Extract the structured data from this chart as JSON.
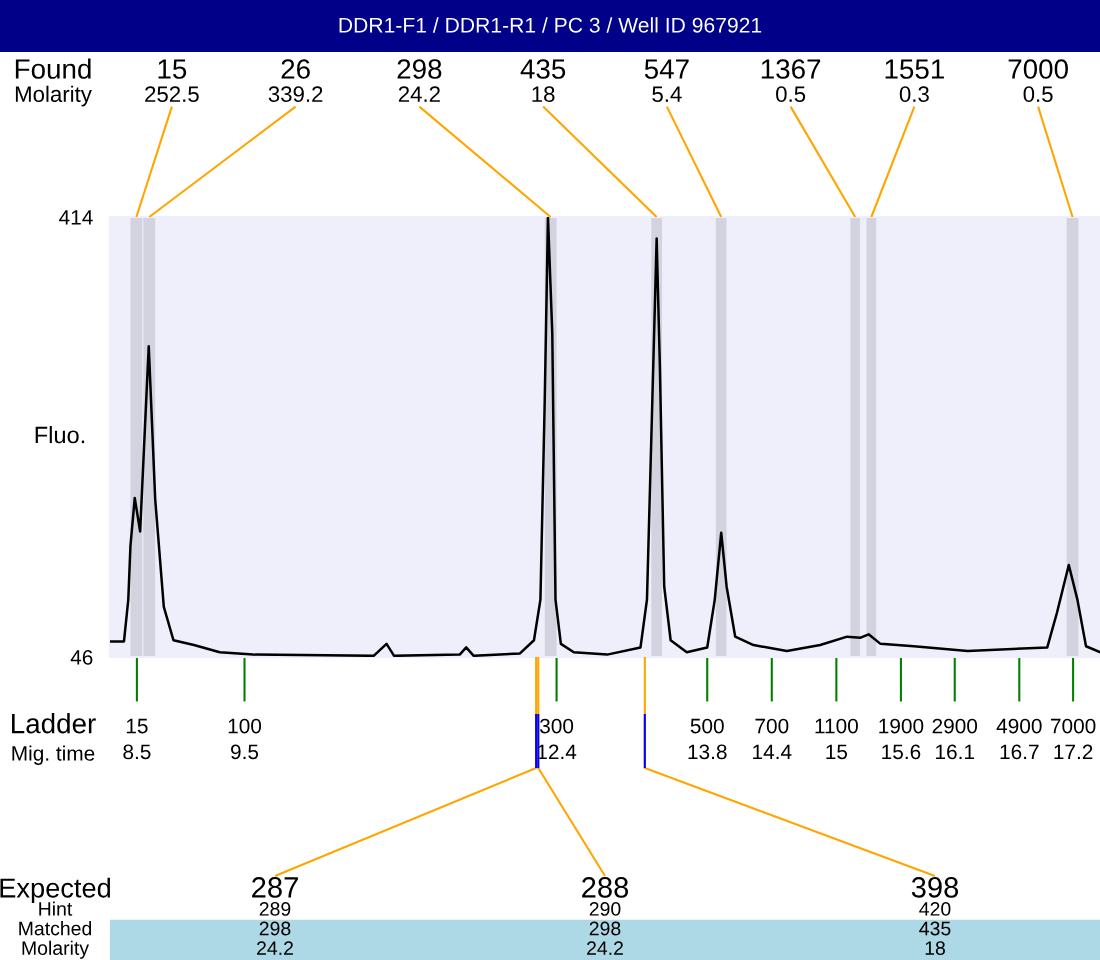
{
  "chart_data": {
    "type": "line",
    "title": "DDR1-F1 / DDR1-R1 / PC 3 / Well ID 967921",
    "xlabel": "Ladder\nMig. time",
    "ylabel": "Fluo.",
    "x": [
      8.25,
      8.38,
      8.42,
      8.44,
      8.48,
      8.53,
      8.61,
      8.67,
      8.75,
      8.84,
      9.03,
      9.27,
      9.58,
      10.7,
      10.82,
      10.89,
      11.5,
      11.56,
      11.63,
      12.06,
      12.19,
      12.25,
      12.29,
      12.32,
      12.36,
      12.39,
      12.44,
      12.56,
      12.87,
      13.18,
      13.24,
      13.29,
      13.33,
      13.36,
      13.4,
      13.46,
      13.61,
      13.8,
      13.87,
      13.93,
      13.98,
      14.06,
      14.23,
      14.54,
      14.85,
      15.1,
      15.22,
      15.3,
      15.41,
      15.72,
      16.22,
      16.96,
      17.05,
      17.16,
      17.24,
      17.32,
      17.45
    ],
    "values": [
      59,
      59,
      94,
      139,
      179,
      151,
      306,
      178,
      88,
      60,
      56,
      50,
      48,
      47,
      57,
      47,
      48,
      54,
      47,
      49,
      60,
      94,
      261,
      414,
      317,
      94,
      57,
      50,
      48,
      54,
      94,
      261,
      396,
      289,
      105,
      60,
      50,
      54,
      94,
      150,
      105,
      63,
      56,
      51,
      56,
      63,
      62,
      65,
      57,
      55,
      51,
      54,
      83,
      123,
      94,
      55,
      50
    ],
    "color": "#000000",
    "line_style": "solid",
    "grid": false,
    "xlim": [
      8.25,
      17.45
    ],
    "ylim": [
      46,
      414
    ],
    "yticks": [
      46,
      414
    ],
    "xticks": [
      8.5,
      9.5,
      12.4,
      13.8,
      14.4,
      15,
      15.6,
      16.1,
      16.7,
      17.2
    ],
    "bands": [
      {
        "axis": "x",
        "from": 8.44,
        "to": 8.55,
        "label": "15\n252.5",
        "color": "#d3d3df"
      },
      {
        "axis": "x",
        "from": 8.56,
        "to": 8.67,
        "label": "26\n339.2",
        "color": "#d3d3df"
      },
      {
        "axis": "x",
        "from": 12.29,
        "to": 12.4,
        "label": "298\n24.2",
        "color": "#d3d3df"
      },
      {
        "axis": "x",
        "from": 13.28,
        "to": 13.38,
        "label": "435\n18",
        "color": "#d3d3df"
      },
      {
        "axis": "x",
        "from": 13.88,
        "to": 13.98,
        "label": "547\n5.4",
        "color": "#d3d3df"
      },
      {
        "axis": "x",
        "from": 15.13,
        "to": 15.22,
        "label": "1367\n0.5",
        "color": "#d3d3df"
      },
      {
        "axis": "x",
        "from": 15.28,
        "to": 15.37,
        "label": "1551\n0.3",
        "color": "#d3d3df"
      },
      {
        "axis": "x",
        "from": 17.14,
        "to": 17.25,
        "label": "7000\n0.5",
        "color": "#d3d3df"
      }
    ],
    "annotations": [
      "Found\nMolarity",
      "15",
      "100",
      "300",
      "500",
      "700",
      "1100",
      "1900",
      "2900",
      "4900",
      "7000",
      "Expected\nHint\nMatched\nMolarity",
      {
        "text": "287\n289\n298\n24.2",
        "x": 12.21,
        "y": 46
      },
      {
        "text": "288\n290\n298\n24.2",
        "x": 12.23,
        "y": 46
      },
      {
        "text": "398\n420\n435\n18",
        "x": 13.22,
        "y": 46
      }
    ]
  }
}
